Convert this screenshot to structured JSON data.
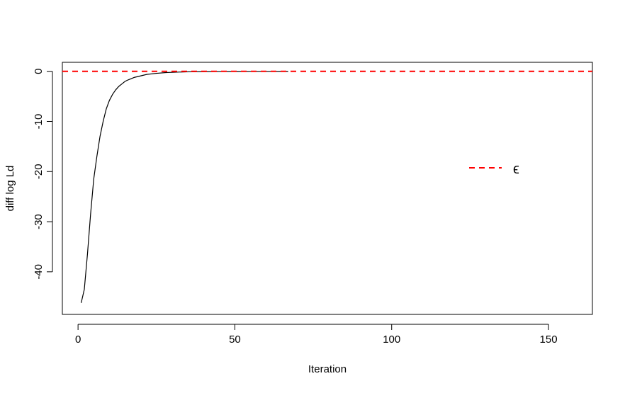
{
  "chart_data": {
    "type": "line",
    "title": "",
    "xlabel": "Iteration",
    "ylabel": "diff log Ld",
    "xlim": [
      -5,
      164
    ],
    "ylim": [
      -48.5,
      1.8
    ],
    "grid": false,
    "x_ticks": [
      {
        "value": 0,
        "label": "0"
      },
      {
        "value": 50,
        "label": "50"
      },
      {
        "value": 100,
        "label": "100"
      },
      {
        "value": 150,
        "label": "150"
      }
    ],
    "y_ticks": [
      {
        "value": 0,
        "label": "0"
      },
      {
        "value": -10,
        "label": "-10"
      },
      {
        "value": -20,
        "label": "-20"
      },
      {
        "value": -30,
        "label": "-30"
      },
      {
        "value": -40,
        "label": "-40"
      }
    ],
    "series": [
      {
        "color": "#000000",
        "line_style": "solid",
        "x": [
          1,
          2,
          3,
          4,
          5,
          6,
          7,
          8,
          9,
          10,
          11,
          12,
          13,
          14,
          15,
          16,
          18,
          20,
          22,
          25,
          28,
          32,
          36,
          40,
          45,
          50,
          55,
          60,
          67
        ],
        "y": [
          -46.2,
          -43.5,
          -36.5,
          -28.5,
          -21.5,
          -17.0,
          -13.0,
          -10.0,
          -7.5,
          -5.8,
          -4.6,
          -3.7,
          -3.0,
          -2.5,
          -2.0,
          -1.7,
          -1.2,
          -0.9,
          -0.6,
          -0.4,
          -0.25,
          -0.15,
          -0.08,
          -0.05,
          -0.03,
          -0.02,
          -0.01,
          -0.01,
          -0.005
        ]
      },
      {
        "name": "ϵ",
        "color": "#ff0000",
        "line_style": "dashed",
        "type": "hline",
        "y": 0
      }
    ],
    "legend": {
      "placement": "right",
      "entries": [
        {
          "label": "ϵ",
          "color": "#ff0000",
          "line_style": "dashed"
        }
      ]
    }
  }
}
